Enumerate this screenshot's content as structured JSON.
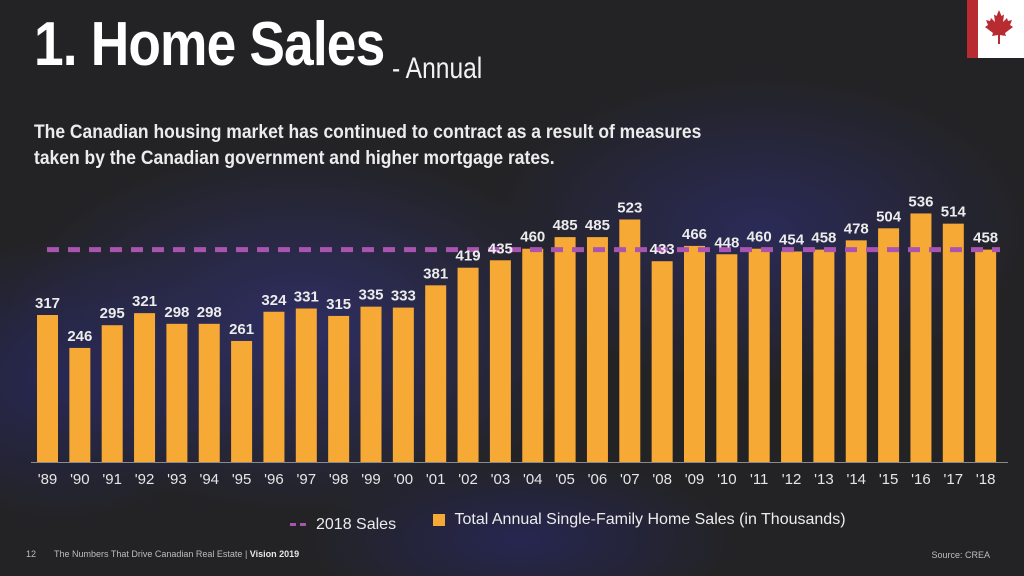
{
  "header": {
    "title": "1. Home Sales",
    "title_suffix": "- Annual",
    "subtitle": "The Canadian housing market has continued to contract as a result of measures taken by the Canadian government and higher mortgage rates.",
    "logo_icon": "canada-flag-icon"
  },
  "legend": {
    "reference_label": "2018 Sales",
    "series_label": "Total Annual Single-Family Home Sales (in Thousands)"
  },
  "footer": {
    "page_number": "12",
    "publication": "The Numbers That Drive Canadian Real Estate | ",
    "edition": "Vision 2019",
    "source": "Source: CREA"
  },
  "colors": {
    "bar": "#f7a935",
    "reference_line": "#a955b0",
    "flag_red": "#b72b31"
  },
  "chart_data": {
    "type": "bar",
    "title": "1. Home Sales - Annual",
    "xlabel": "",
    "ylabel": "",
    "categories": [
      "'89",
      "'90",
      "'91",
      "'92",
      "'93",
      "'94",
      "'95",
      "'96",
      "'97",
      "'98",
      "'99",
      "'00",
      "'01",
      "'02",
      "'03",
      "'04",
      "'05",
      "'06",
      "'07",
      "'08",
      "'09",
      "'10",
      "'11",
      "'12",
      "'13",
      "'14",
      "'15",
      "'16",
      "'17",
      "'18"
    ],
    "series": [
      {
        "name": "Total Annual Single-Family Home Sales (in Thousands)",
        "values": [
          317,
          246,
          295,
          321,
          298,
          298,
          261,
          324,
          331,
          315,
          335,
          333,
          381,
          419,
          435,
          460,
          485,
          485,
          523,
          433,
          466,
          448,
          460,
          454,
          458,
          478,
          504,
          536,
          514,
          458
        ]
      }
    ],
    "reference_line": {
      "name": "2018 Sales",
      "value": 458,
      "style": "dashed"
    },
    "ylim": [
      0,
      570
    ],
    "grid": false,
    "legend_position": "bottom",
    "data_labels": true
  }
}
